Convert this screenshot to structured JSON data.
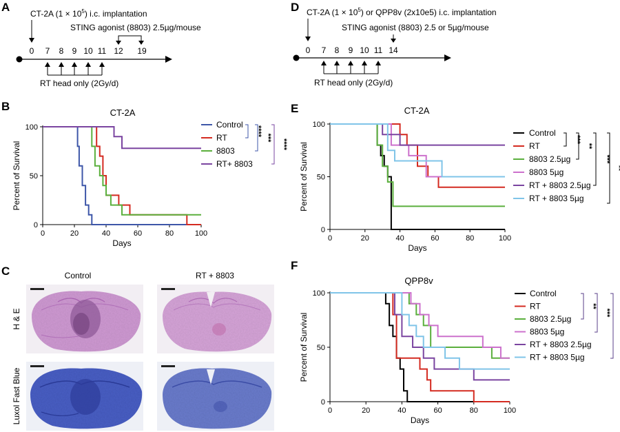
{
  "panels": {
    "A": {
      "letter": "A",
      "implant_prefix": "CT-2A (1 × 10",
      "implant_exp": "5",
      "implant_suffix": ") i.c. implantation",
      "sting_label": "STING agonist (8803) 2.5µg/mouse",
      "days": [
        "0",
        "7",
        "8",
        "9",
        "10",
        "11",
        "12",
        "19"
      ],
      "rt_label": "RT head only (2Gy/d)"
    },
    "D": {
      "letter": "D",
      "implant_prefix": "CT-2A (1 × 10",
      "implant_exp": "5",
      "implant_suffix": ")  or QPP8v (2x10e5) i.c. implantation",
      "sting_label": "STING agonist (8803) 2.5 or 5µg/mouse",
      "days": [
        "0",
        "7",
        "8",
        "9",
        "10",
        "11",
        "14"
      ],
      "rt_label": "RT head only (2Gy/d)"
    },
    "C": {
      "letter": "C",
      "col_control": "Control",
      "col_treat": "RT + 8803",
      "row_he": "H & E",
      "row_lfb": "Luxol Fast Blue"
    }
  },
  "chart_data": [
    {
      "id": "B",
      "letter": "B",
      "type": "line",
      "step": true,
      "title": "CT-2A",
      "xlabel": "Days",
      "ylabel": "Percent of Survival",
      "xlim": [
        0,
        100
      ],
      "ylim": [
        0,
        100
      ],
      "xticks": [
        "0",
        "20",
        "40",
        "60",
        "80",
        "100"
      ],
      "yticks": [
        "0",
        "50",
        "100"
      ],
      "legend_position": "right",
      "series": [
        {
          "name": "Control",
          "color": "#3d56a8",
          "x": [
            0,
            20,
            22,
            23,
            25,
            27,
            29,
            31
          ],
          "y": [
            100,
            100,
            80,
            60,
            40,
            20,
            10,
            0
          ]
        },
        {
          "name": "RT",
          "color": "#d42a20",
          "x": [
            0,
            27,
            34,
            36,
            38,
            40,
            48,
            55,
            91
          ],
          "y": [
            100,
            100,
            80,
            70,
            50,
            30,
            20,
            10,
            0
          ]
        },
        {
          "name": "8803",
          "color": "#5aaf3c",
          "x": [
            0,
            27,
            31,
            33,
            36,
            38,
            40,
            43,
            50
          ],
          "y": [
            100,
            100,
            80,
            60,
            50,
            40,
            30,
            20,
            10
          ]
        },
        {
          "name": "RT+ 8803",
          "color": "#7a44a0",
          "x": [
            0,
            40,
            45,
            50
          ],
          "y": [
            100,
            100,
            90,
            78
          ]
        }
      ],
      "significance": [
        "****",
        "***",
        "****"
      ]
    },
    {
      "id": "E",
      "letter": "E",
      "type": "line",
      "step": true,
      "title": "CT-2A",
      "xlabel": "Days",
      "ylabel": "Percent of Survival",
      "xlim": [
        0,
        100
      ],
      "ylim": [
        0,
        100
      ],
      "xticks": [
        "0",
        "20",
        "40",
        "60",
        "80",
        "100"
      ],
      "yticks": [
        "0",
        "50",
        "100"
      ],
      "legend_position": "right",
      "series": [
        {
          "name": "Control",
          "color": "#000000",
          "x": [
            0,
            25,
            27,
            29,
            31,
            33,
            35
          ],
          "y": [
            100,
            100,
            80,
            70,
            60,
            50,
            0
          ]
        },
        {
          "name": "RT",
          "color": "#d42a20",
          "x": [
            0,
            28,
            40,
            44,
            50,
            56,
            62
          ],
          "y": [
            100,
            100,
            90,
            80,
            60,
            50,
            40
          ]
        },
        {
          "name": "8803 2.5µg",
          "color": "#5aaf3c",
          "x": [
            0,
            24,
            27,
            30,
            33,
            36
          ],
          "y": [
            100,
            100,
            80,
            60,
            45,
            22
          ]
        },
        {
          "name": "8803 5µg",
          "color": "#cc70cc",
          "x": [
            0,
            27,
            35,
            45,
            55
          ],
          "y": [
            100,
            100,
            80,
            70,
            50
          ]
        },
        {
          "name": "RT + 8803 2.5µg",
          "color": "#7a44a0",
          "x": [
            0,
            26,
            30,
            40
          ],
          "y": [
            100,
            100,
            90,
            80
          ]
        },
        {
          "name": "RT + 8803 5µg",
          "color": "#7fc4e8",
          "x": [
            0,
            27,
            33,
            37,
            54,
            64
          ],
          "y": [
            100,
            100,
            75,
            65,
            65,
            50
          ]
        }
      ],
      "significance": [
        "***",
        "**",
        "***",
        "**"
      ]
    },
    {
      "id": "F",
      "letter": "F",
      "type": "line",
      "step": true,
      "title": "QPP8v",
      "xlabel": "Days",
      "ylabel": "Percent of Survival",
      "xlim": [
        0,
        100
      ],
      "ylim": [
        0,
        100
      ],
      "xticks": [
        "0",
        "20",
        "40",
        "60",
        "80",
        "100"
      ],
      "yticks": [
        "0",
        "50",
        "100"
      ],
      "legend_position": "right",
      "series": [
        {
          "name": "Control",
          "color": "#000000",
          "x": [
            0,
            29,
            31,
            33,
            35,
            37,
            39,
            41,
            43
          ],
          "y": [
            100,
            100,
            90,
            70,
            60,
            40,
            30,
            10,
            0
          ]
        },
        {
          "name": "RT",
          "color": "#d42a20",
          "x": [
            0,
            32,
            35,
            37,
            50,
            54,
            56,
            80
          ],
          "y": [
            100,
            100,
            80,
            40,
            30,
            20,
            10,
            0
          ]
        },
        {
          "name": "8803 2.5µg",
          "color": "#5aaf3c",
          "x": [
            0,
            40,
            44,
            48,
            52,
            56,
            90
          ],
          "y": [
            100,
            100,
            90,
            80,
            70,
            50,
            40
          ]
        },
        {
          "name": "8803 5µg",
          "color": "#cc70cc",
          "x": [
            0,
            40,
            45,
            50,
            55,
            60,
            85,
            95
          ],
          "y": [
            100,
            100,
            90,
            80,
            70,
            60,
            50,
            40
          ]
        },
        {
          "name": "RT + 8803 2.5µg",
          "color": "#7a44a0",
          "x": [
            0,
            33,
            36,
            40,
            46,
            52,
            58,
            80
          ],
          "y": [
            100,
            100,
            80,
            60,
            50,
            40,
            30,
            20
          ]
        },
        {
          "name": "RT + 8803 5µg",
          "color": "#7fc4e8",
          "x": [
            0,
            36,
            40,
            44,
            48,
            52,
            64,
            72
          ],
          "y": [
            100,
            100,
            80,
            70,
            60,
            50,
            40,
            30
          ]
        }
      ],
      "significance": [
        "**",
        "***",
        "**"
      ]
    }
  ]
}
